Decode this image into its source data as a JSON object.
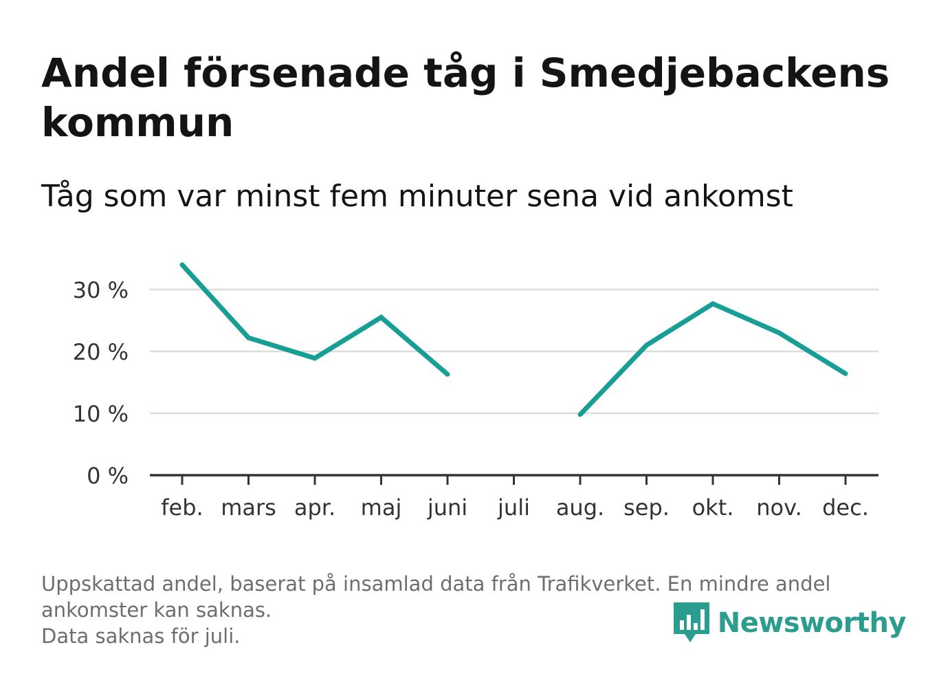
{
  "title": "Andel försenade tåg i Smedjebackens kommun",
  "subtitle": "Tåg som var minst fem minuter sena vid ankomst",
  "chart_data": {
    "type": "line",
    "categories": [
      "feb.",
      "mars",
      "apr.",
      "maj",
      "juni",
      "juli",
      "aug.",
      "sep.",
      "okt.",
      "nov.",
      "dec."
    ],
    "series": [
      {
        "values": [
          34,
          22.2,
          18.9,
          25.5,
          16.3,
          null,
          9.8,
          21.0,
          27.7,
          23.0,
          16.4
        ]
      }
    ],
    "yticks": [
      0,
      10,
      20,
      30
    ],
    "ytick_labels": [
      "0 %",
      "10 %",
      "20 %",
      "30 %"
    ],
    "ylim": [
      0,
      35
    ],
    "grid": true,
    "line_color": "#179e95"
  },
  "footer": {
    "note_line1": "Uppskattad andel, baserat på insamlad data från Trafikverket. En mindre andel ankomster kan saknas.",
    "note_line2": "Data saknas för juli."
  },
  "logo": {
    "text": "Newsworthy",
    "icon": "newsworthy-bar-chart-icon",
    "color": "#2a9d8f"
  }
}
